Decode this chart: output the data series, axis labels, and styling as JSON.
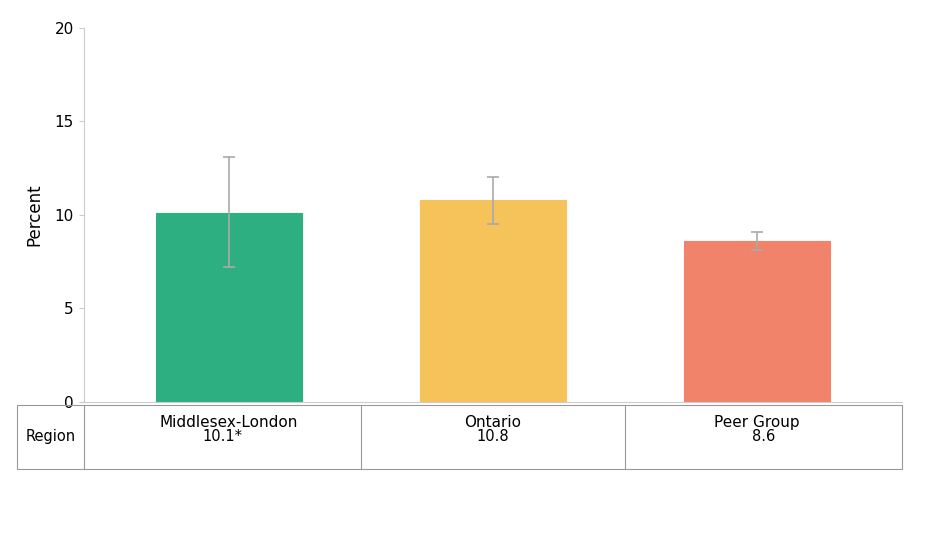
{
  "categories": [
    "Middlesex-London",
    "Ontario",
    "Peer Group"
  ],
  "values": [
    10.1,
    10.8,
    8.6
  ],
  "errors_upper": [
    3.0,
    1.2,
    0.5
  ],
  "errors_lower": [
    2.9,
    1.3,
    0.5
  ],
  "bar_colors": [
    "#2EAF82",
    "#F5C35A",
    "#F2836B"
  ],
  "bar_edge_colors": [
    "#2EAF82",
    "#F5C35A",
    "#F2836B"
  ],
  "ylabel": "Percent",
  "ylim": [
    0,
    20
  ],
  "yticks": [
    0,
    5,
    10,
    15,
    20
  ],
  "table_row_label": "Region",
  "table_values": [
    "10.1*",
    "10.8",
    "8.6"
  ],
  "background_color": "#ffffff",
  "error_color": "#aaaaaa",
  "error_linewidth": 1.2,
  "error_capsize": 4,
  "bar_width": 0.55,
  "xlim": [
    -0.55,
    2.55
  ]
}
